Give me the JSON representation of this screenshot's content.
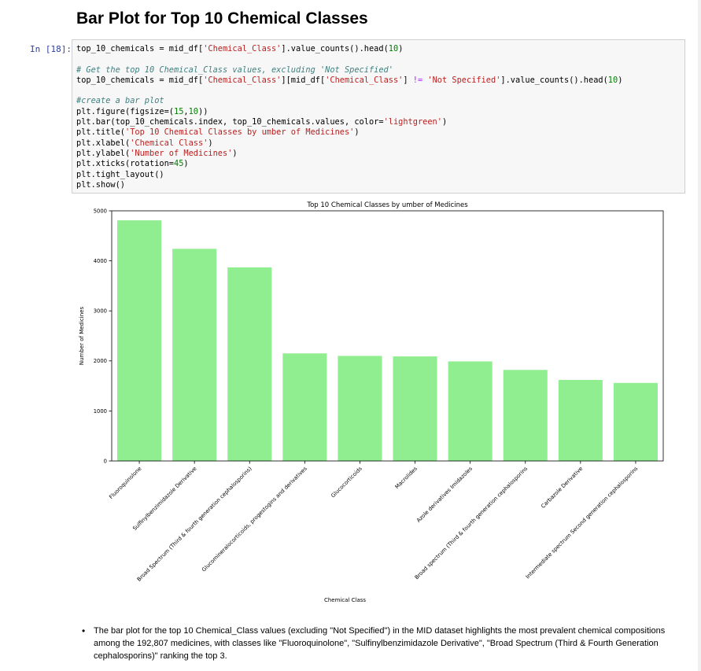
{
  "heading": "Bar Plot for Top 10 Chemical Classes",
  "cell": {
    "prompt": "In [18]:",
    "code": [
      [
        {
          "t": "top_10_chemicals = mid_df["
        },
        {
          "t": "'Chemical_Class'",
          "c": "str"
        },
        {
          "t": "].value_counts().head("
        },
        {
          "t": "10",
          "c": "num"
        },
        {
          "t": ")"
        }
      ],
      [],
      [
        {
          "t": "# Get the top 10 Chemical_Class values, excluding 'Not Specified'",
          "c": "comment"
        }
      ],
      [
        {
          "t": "top_10_chemicals = mid_df["
        },
        {
          "t": "'Chemical_Class'",
          "c": "str"
        },
        {
          "t": "][mid_df["
        },
        {
          "t": "'Chemical_Class'",
          "c": "str"
        },
        {
          "t": "] "
        },
        {
          "t": "!=",
          "c": "op"
        },
        {
          "t": " "
        },
        {
          "t": "'Not Specified'",
          "c": "str"
        },
        {
          "t": "].value_counts().head("
        },
        {
          "t": "10",
          "c": "num"
        },
        {
          "t": ")"
        }
      ],
      [],
      [
        {
          "t": "#create a bar plot",
          "c": "comment"
        }
      ],
      [
        {
          "t": "plt.figure(figsize=("
        },
        {
          "t": "15",
          "c": "num"
        },
        {
          "t": ","
        },
        {
          "t": "10",
          "c": "num"
        },
        {
          "t": "))"
        }
      ],
      [
        {
          "t": "plt.bar(top_10_chemicals.index, top_10_chemicals.values, color="
        },
        {
          "t": "'lightgreen'",
          "c": "str"
        },
        {
          "t": ")"
        }
      ],
      [
        {
          "t": "plt.title("
        },
        {
          "t": "'Top 10 Chemical Classes by umber of Medicines'",
          "c": "str"
        },
        {
          "t": ")"
        }
      ],
      [
        {
          "t": "plt.xlabel("
        },
        {
          "t": "'Chemical Class'",
          "c": "str"
        },
        {
          "t": ")"
        }
      ],
      [
        {
          "t": "plt.ylabel("
        },
        {
          "t": "'Number of Medicines'",
          "c": "str"
        },
        {
          "t": ")"
        }
      ],
      [
        {
          "t": "plt.xticks(rotation="
        },
        {
          "t": "45",
          "c": "num"
        },
        {
          "t": ")"
        }
      ],
      [
        {
          "t": "plt.tight_layout()"
        }
      ],
      [
        {
          "t": "plt.show()"
        }
      ]
    ]
  },
  "chart_data": {
    "type": "bar",
    "title": "Top 10 Chemical Classes by umber of Medicines",
    "xlabel": "Chemical Class",
    "ylabel": "Number of Medicines",
    "categories": [
      "Fluoroquinolone",
      "Sulfinylbenzimidazole Derivative",
      "Broad Spectrum (Third & fourth generation cephalosporins)",
      "Glucomineralocorticoids, progestogins and derivatives",
      "Glucocorticoids",
      "Macrolides",
      "Azole derivatives Imidazoles",
      "Broad spectrum (Third & fourth generation cephalosporins",
      "Carbazole Derivative",
      "Intermediate spectrum Second generation cephalosporins"
    ],
    "values": [
      4810,
      4240,
      3870,
      2150,
      2100,
      2090,
      1990,
      1820,
      1620,
      1560
    ],
    "ylim": [
      0,
      5000
    ],
    "yticks": [
      0,
      1000,
      2000,
      3000,
      4000,
      5000
    ],
    "bar_color": "#90ee90",
    "grid": false,
    "tick_rotation": 45
  },
  "bullet": "The bar plot for the top 10 Chemical_Class values (excluding \"Not Specified\") in the MID dataset highlights the most prevalent chemical compositions among the 192,807 medicines, with classes like \"Fluoroquinolone\", \"Sulfinylbenzimidazole Derivative\", \"Broad Spectrum (Third & Fourth Generation cephalosporins)\" ranking the top 3."
}
